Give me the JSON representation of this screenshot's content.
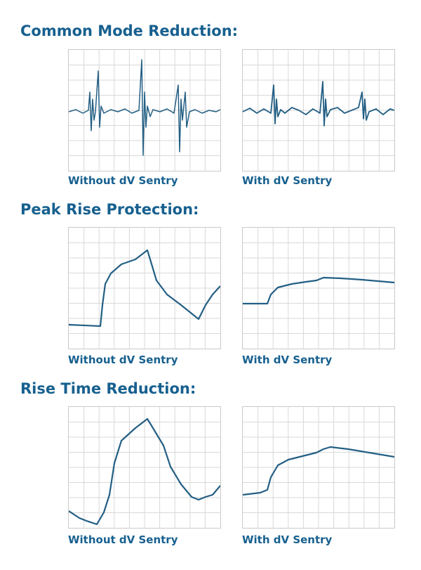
{
  "sections": [
    {
      "title": "Common Mode Reduction:",
      "captions": [
        "Without dV Sentry",
        "With dV Sentry"
      ]
    },
    {
      "title": "Peak Rise Protection:",
      "captions": [
        "Without dV Sentry",
        "With dV Sentry"
      ]
    },
    {
      "title": "Rise Time Reduction:",
      "captions": [
        "Without dV Sentry",
        "With dV Sentry"
      ]
    }
  ]
}
